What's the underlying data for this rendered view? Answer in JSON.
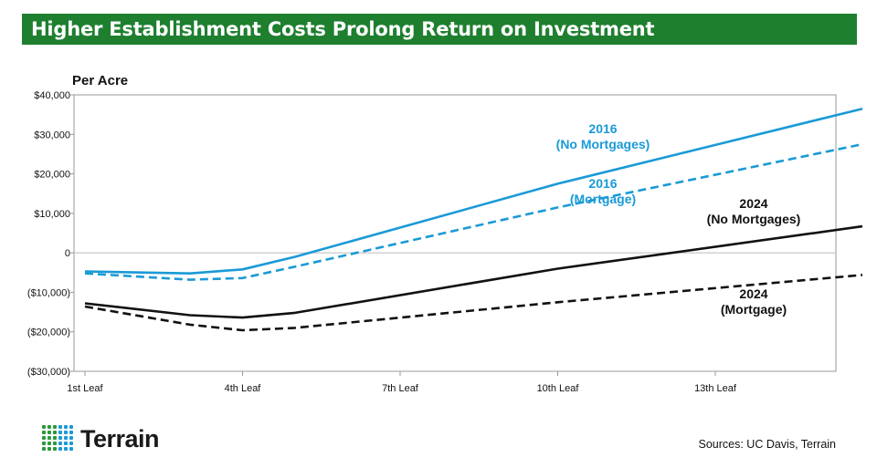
{
  "header": {
    "title": "Higher Establishment Costs Prolong Return on Investment"
  },
  "footer": {
    "logo_text": "Terrain",
    "source": "Sources: UC Davis, Terrain"
  },
  "colors": {
    "banner": "#1e7f2f",
    "blue": "#1a9ad6",
    "black": "#111111",
    "grid": "#bbbbbb",
    "logo_green": "#2a9a3c",
    "logo_blue": "#1a9ad6"
  },
  "chart_data": {
    "type": "line",
    "ylabel": "Per Acre",
    "ylim": [
      -30000,
      40000
    ],
    "xlim": [
      1,
      15.8
    ],
    "y_ticks": [
      {
        "value": 40000,
        "label": "$40,000"
      },
      {
        "value": 30000,
        "label": "$30,000"
      },
      {
        "value": 20000,
        "label": "$20,000"
      },
      {
        "value": 10000,
        "label": "$10,000"
      },
      {
        "value": 0,
        "label": "0"
      },
      {
        "value": -10000,
        "label": "($10,000)"
      },
      {
        "value": -20000,
        "label": "($20,000)"
      },
      {
        "value": -30000,
        "label": "($30,000)"
      }
    ],
    "x_ticks": [
      {
        "value": 1,
        "label": "1st Leaf"
      },
      {
        "value": 4,
        "label": "4th Leaf"
      },
      {
        "value": 7,
        "label": "7th Leaf"
      },
      {
        "value": 10,
        "label": "10th Leaf"
      },
      {
        "value": 13,
        "label": "13th Leaf"
      }
    ],
    "series": [
      {
        "id": "2016-no-mortgages",
        "color": "#1a9ad6",
        "dash": false,
        "label": [
          "2016",
          "(No Mortgages)"
        ],
        "points": [
          [
            1,
            -4700
          ],
          [
            3,
            -5200
          ],
          [
            4,
            -4200
          ],
          [
            5,
            -1000
          ],
          [
            10,
            17500
          ],
          [
            15.8,
            36500
          ]
        ]
      },
      {
        "id": "2016-mortgage",
        "color": "#1a9ad6",
        "dash": true,
        "label": [
          "2016",
          "(Mortgage)"
        ],
        "points": [
          [
            1,
            -5200
          ],
          [
            3,
            -6800
          ],
          [
            4,
            -6400
          ],
          [
            5,
            -3500
          ],
          [
            10,
            11500
          ],
          [
            15.8,
            27500
          ]
        ]
      },
      {
        "id": "2024-no-mortgages",
        "color": "#111111",
        "dash": false,
        "label": [
          "2024",
          "(No Mortgages)"
        ],
        "points": [
          [
            1,
            -12800
          ],
          [
            3,
            -15800
          ],
          [
            4,
            -16400
          ],
          [
            5,
            -15200
          ],
          [
            10,
            -4000
          ],
          [
            15.8,
            6700
          ]
        ]
      },
      {
        "id": "2024-mortgage",
        "color": "#111111",
        "dash": true,
        "label": [
          "2024",
          "(Mortgage)"
        ],
        "points": [
          [
            1,
            -13600
          ],
          [
            3,
            -18200
          ],
          [
            4,
            -19600
          ],
          [
            5,
            -19000
          ],
          [
            10,
            -12500
          ],
          [
            15.8,
            -5600
          ]
        ]
      }
    ]
  }
}
